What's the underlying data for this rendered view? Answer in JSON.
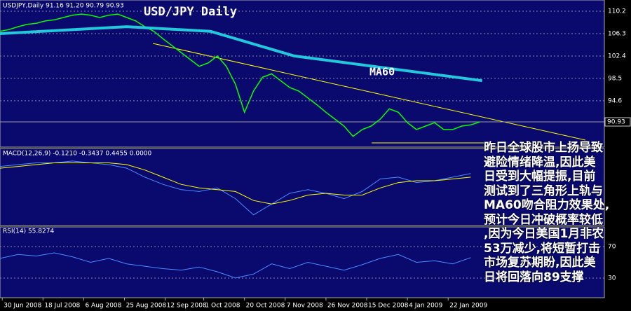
{
  "header": "USDJPY,Daily  91.16 91.20 90.79 90.93",
  "annotation": [
    "昨日全球股市上扬导致",
    "避险情绪降温,因此美",
    "日受到大幅提振,目前",
    "测试到了三角形上轨与",
    "MA60吻合阻力效果处,",
    "预计今日冲破概率较低",
    ",因为今日美国1月非农",
    "53万减少,将短暂打击",
    "市场复苏期盼,因此美",
    "日将回落向89支撑"
  ],
  "chart_data": [
    {
      "type": "line",
      "title": "USD/JPY Daily",
      "x": [
        0,
        4,
        8,
        12,
        16,
        20,
        24,
        28,
        32,
        36,
        40,
        44,
        48,
        52,
        56,
        60,
        64,
        68,
        72,
        76,
        80,
        84,
        88,
        92,
        96,
        100,
        104,
        108,
        112,
        116,
        120,
        124,
        128,
        132,
        136,
        140,
        144,
        148,
        152,
        156,
        160,
        164,
        168,
        172,
        176,
        180,
        184,
        188,
        192,
        196,
        200,
        204,
        208,
        212
      ],
      "series": [
        {
          "color": "#00ff00",
          "values": [
            106.7,
            107.0,
            107.5,
            107.9,
            108.1,
            108.5,
            108.7,
            109.1,
            109.5,
            109.7,
            109.5,
            109.1,
            109.5,
            109.7,
            109.1,
            108.5,
            107.5,
            106.7,
            105.4,
            104.2,
            103.0,
            101.8,
            100.6,
            101.2,
            102.4,
            100.6,
            97.5,
            92.6,
            96.3,
            98.7,
            99.3,
            98.1,
            96.9,
            96.3,
            95.1,
            93.9,
            92.6,
            91.4,
            90.2,
            88.4,
            89.6,
            90.2,
            91.4,
            93.2,
            92.6,
            90.8,
            89.6,
            90.2,
            90.8,
            89.6,
            89.6,
            90.2,
            90.4,
            90.93
          ]
        },
        {
          "name": "MA60",
          "color": "#22c8dc",
          "x": [
            0,
            56,
            93,
            130,
            213
          ],
          "values": [
            106.3,
            107.5,
            106.7,
            102.4,
            98.1
          ]
        }
      ],
      "xlim": [
        0,
        267
      ],
      "ylim": [
        86.54,
        112.15
      ],
      "yticks": [
        110.2,
        106.3,
        102.4,
        98.5,
        94.6
      ],
      "current_price": {
        "value": 90.93,
        "label": "90.93"
      },
      "xticks": [
        {
          "value": 1,
          "label": "30 Jun 2008"
        },
        {
          "value": 19,
          "label": "18 Jul 2008"
        },
        {
          "value": 37,
          "label": "6 Aug 2008"
        },
        {
          "value": 55,
          "label": "25 Aug 2008"
        },
        {
          "value": 73,
          "label": "12 Sep 2008"
        },
        {
          "value": 90,
          "label": "1 Oct 2008"
        },
        {
          "value": 108,
          "label": "20 Oct 2008"
        },
        {
          "value": 126,
          "label": "7 Nov 2008"
        },
        {
          "value": 144,
          "label": "26 Nov 2008"
        },
        {
          "value": 162,
          "label": "15 Dec 2008"
        },
        {
          "value": 180,
          "label": "4 Jan 2009"
        },
        {
          "value": 198,
          "label": "22 Jan 2009"
        }
      ]
    },
    {
      "type": "macd",
      "title": "MACD(12,26,9) -0.1210 -0.3437 0.4455 0.0000",
      "x": [
        0,
        8,
        16,
        24,
        32,
        40,
        48,
        56,
        64,
        72,
        80,
        88,
        96,
        104,
        112,
        120,
        128,
        136,
        144,
        152,
        160,
        168,
        176,
        184,
        192,
        200,
        208
      ],
      "series": [
        {
          "color": "#4a8cff",
          "values": [
            0.3,
            0.4,
            0.5,
            0.5,
            0.6,
            0.5,
            0.4,
            0.2,
            -0.3,
            -0.7,
            -1.0,
            -1.1,
            -0.9,
            -1.5,
            -2.4,
            -1.8,
            -1.2,
            -1.0,
            -1.2,
            -1.5,
            -1.1,
            -0.4,
            -0.3,
            -0.6,
            -0.5,
            -0.3,
            -0.1
          ]
        },
        {
          "color": "#ffff00",
          "values": [
            0.2,
            0.3,
            0.4,
            0.5,
            0.5,
            0.5,
            0.5,
            0.4,
            0.1,
            -0.3,
            -0.7,
            -0.9,
            -1.0,
            -1.1,
            -1.6,
            -1.8,
            -1.6,
            -1.3,
            -1.2,
            -1.3,
            -1.3,
            -0.9,
            -0.6,
            -0.5,
            -0.5,
            -0.4,
            -0.3
          ]
        }
      ],
      "xlim": [
        0,
        267
      ],
      "ylim": [
        -3,
        1.3
      ]
    },
    {
      "type": "rsi",
      "title": "RSI(14) 55.8274",
      "x": [
        0,
        8,
        16,
        24,
        32,
        40,
        48,
        56,
        64,
        72,
        80,
        88,
        96,
        104,
        112,
        120,
        128,
        136,
        144,
        152,
        160,
        168,
        176,
        184,
        192,
        200,
        208
      ],
      "series": [
        {
          "color": "#4a8cff",
          "values": [
            55,
            60,
            58,
            62,
            57,
            50,
            55,
            48,
            45,
            42,
            40,
            44,
            38,
            30,
            35,
            48,
            42,
            50,
            45,
            40,
            47,
            55,
            60,
            50,
            52,
            48,
            56
          ]
        }
      ],
      "xlim": [
        0,
        267
      ],
      "ylim": [
        5,
        95
      ],
      "yticks": [
        70,
        30
      ]
    }
  ]
}
